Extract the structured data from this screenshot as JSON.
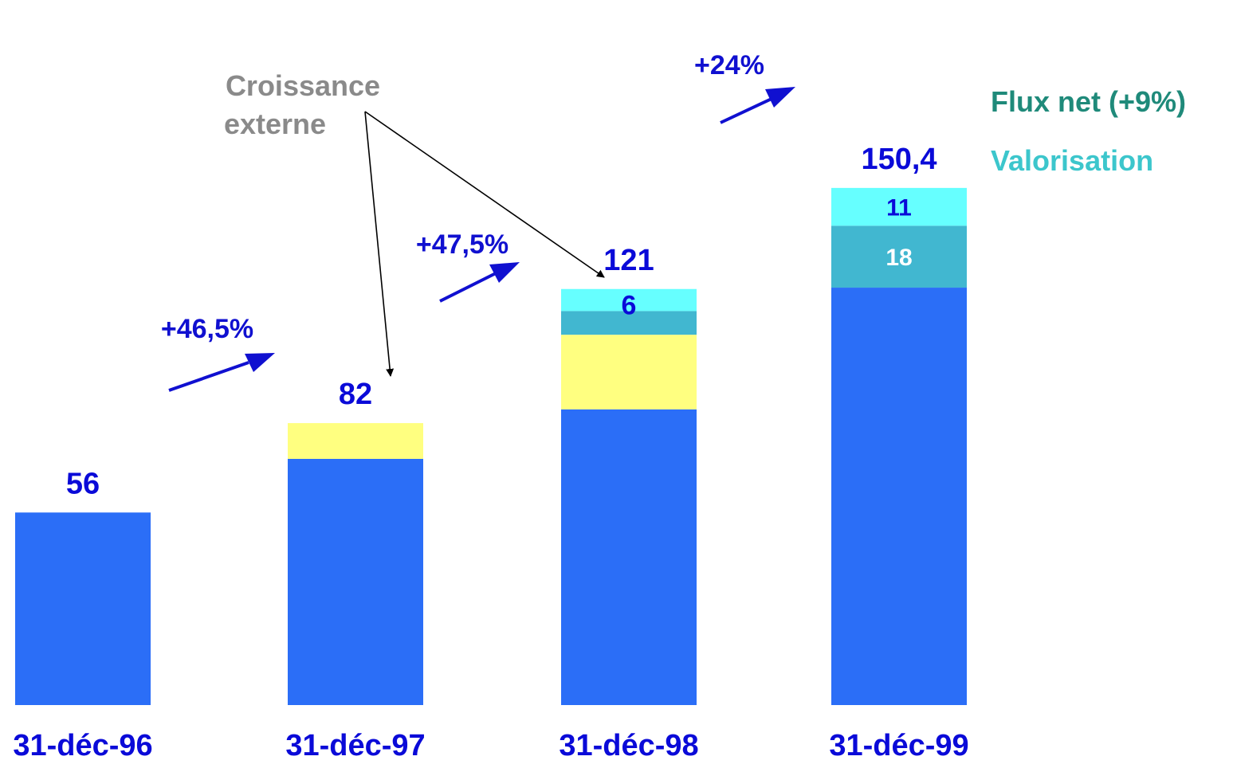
{
  "colors": {
    "base": "#2b6ef7",
    "external": "#ffff80",
    "valorisation": "#41b7d0",
    "flux_net": "#66ffff",
    "label_blue": "#0a0ad8",
    "growth_blue": "#1010d0",
    "annotation_gray": "#8a8a8a",
    "legend_flux": "#1f8a7a",
    "legend_valo": "#3cc6cc",
    "white": "#ffffff"
  },
  "legend": {
    "flux_net": "Flux net (+9%)",
    "valorisation": "Valorisation"
  },
  "annotation": {
    "line1": "Croissance",
    "line2": "externe"
  },
  "chart_data": {
    "type": "bar",
    "stacked": true,
    "categories": [
      "31-déc-96",
      "31-déc-97",
      "31-déc-98",
      "31-déc-99"
    ],
    "totals": [
      56,
      82,
      121,
      150.4
    ],
    "total_labels": [
      "56",
      "82",
      "121",
      "150,4"
    ],
    "segments": [
      {
        "key": "base",
        "values": [
          56,
          71.6,
          86,
          121.4
        ]
      },
      {
        "key": "external",
        "values": [
          0,
          10.4,
          21.7,
          0
        ]
      },
      {
        "key": "valorisation",
        "values": [
          0,
          0,
          6.9,
          18
        ]
      },
      {
        "key": "flux_net",
        "values": [
          0,
          0,
          6.4,
          11
        ]
      }
    ],
    "segment_labels": [
      {
        "bar": 2,
        "key": "flux_net",
        "text": "6"
      },
      {
        "bar": 3,
        "key": "valorisation",
        "text": "18"
      },
      {
        "bar": 3,
        "key": "flux_net",
        "text": "11"
      }
    ],
    "growth": [
      "+46,5%",
      "+47,5%",
      "+24%"
    ],
    "ylim": [
      0,
      160
    ],
    "grid": false,
    "legend_position": "right"
  }
}
